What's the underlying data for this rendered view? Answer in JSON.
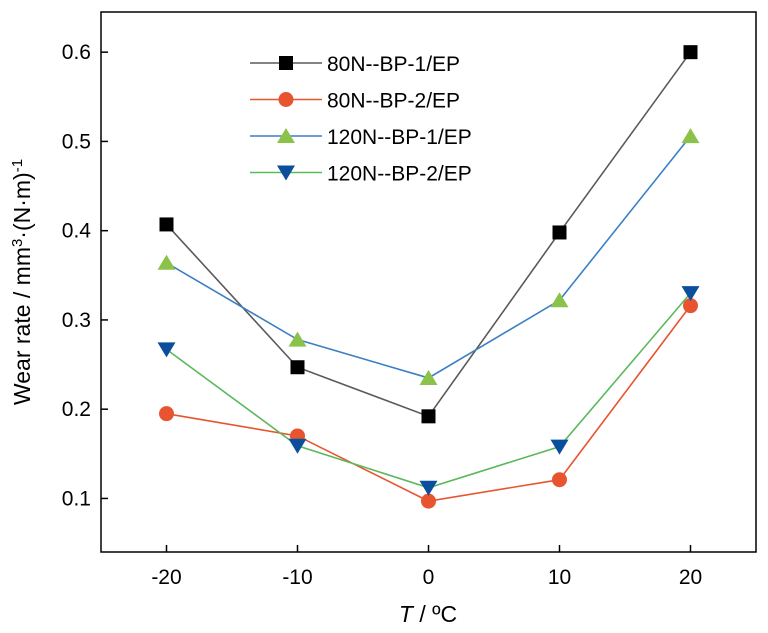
{
  "chart_data": {
    "type": "line",
    "x": [
      -20,
      -10,
      0,
      10,
      20
    ],
    "x_tick_labels": [
      "-20",
      "-10",
      "0",
      "10",
      "20"
    ],
    "xlim": [
      -25,
      25
    ],
    "y_ticks": [
      0.1,
      0.2,
      0.3,
      0.4,
      0.5,
      0.6
    ],
    "y_tick_labels": [
      "0.1",
      "0.2",
      "0.3",
      "0.4",
      "0.5",
      "0.6"
    ],
    "ylim": [
      0.04,
      0.645
    ],
    "xlabel_var": "T",
    "xlabel_unit": " / ºC",
    "ylabel_main": "Wear rate / mm",
    "ylabel_sup1": "3",
    "ylabel_mid": "·(N·m)",
    "ylabel_sup2": "-1",
    "grid": false,
    "legend_position": "top-left",
    "series": [
      {
        "name": "80N--BP-1/EP",
        "marker": "square",
        "line_color": "#5a5a5a",
        "marker_color": "#000000",
        "values": [
          0.407,
          0.247,
          0.192,
          0.398,
          0.6
        ]
      },
      {
        "name": "80N--BP-2/EP",
        "marker": "circle",
        "line_color": "#e8542f",
        "marker_color": "#e8542f",
        "values": [
          0.195,
          0.17,
          0.097,
          0.121,
          0.316
        ]
      },
      {
        "name": "120N--BP-1/EP",
        "marker": "triangle-up",
        "line_color": "#3b7fc4",
        "marker_color": "#8bc34a",
        "values": [
          0.364,
          0.278,
          0.235,
          0.322,
          0.506
        ]
      },
      {
        "name": "120N--BP-2/EP",
        "marker": "triangle-down",
        "line_color": "#5cb85c",
        "marker_color": "#0b4f9c",
        "values": [
          0.267,
          0.159,
          0.112,
          0.158,
          0.33
        ]
      }
    ]
  }
}
